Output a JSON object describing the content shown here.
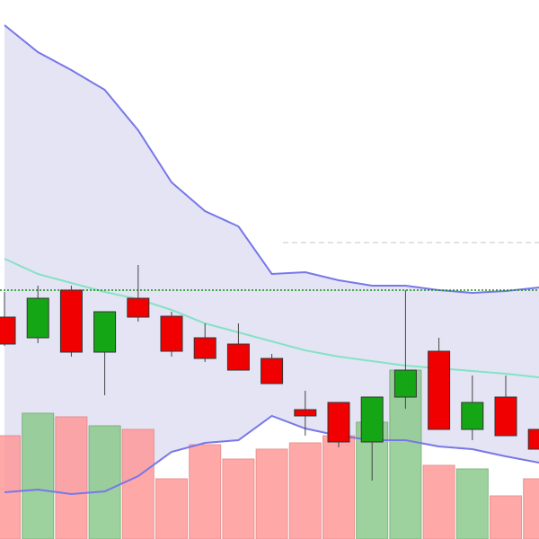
{
  "chart_data": {
    "type": "candlestick",
    "categories": [
      null,
      null,
      null,
      null,
      null,
      null,
      null,
      null,
      null,
      null,
      null,
      null,
      null,
      null,
      null,
      null,
      null
    ],
    "open": [
      247,
      224,
      277,
      208,
      268,
      248,
      224,
      217,
      201,
      144,
      152,
      108,
      158,
      209,
      122,
      158,
      122
    ],
    "high": [
      275,
      282,
      282,
      253,
      305,
      253,
      240,
      240,
      206,
      165,
      152,
      158,
      277,
      224,
      182,
      182,
      122
    ],
    "low": [
      215,
      218,
      203,
      160,
      242,
      203,
      197,
      188,
      173,
      115,
      102,
      65,
      145,
      122,
      110,
      115,
      100
    ],
    "close": [
      217,
      268,
      208,
      253,
      247,
      209,
      201,
      188,
      173,
      137,
      108,
      158,
      188,
      122,
      152,
      115,
      100
    ],
    "volume": [
      115,
      140,
      136,
      126,
      122,
      67,
      105,
      89,
      100,
      107,
      115,
      130,
      188,
      82,
      78,
      48,
      67
    ],
    "bands": {
      "upper": [
        572,
        542,
        522,
        500,
        455,
        397,
        365,
        348,
        295,
        297,
        288,
        282,
        282,
        277,
        274,
        276,
        280
      ],
      "middle": [
        312,
        295,
        285,
        275,
        267,
        255,
        240,
        230,
        220,
        210,
        203,
        198,
        193,
        190,
        187,
        184,
        180
      ],
      "lower": [
        52,
        55,
        50,
        53,
        70,
        97,
        107,
        110,
        137,
        123,
        115,
        110,
        110,
        103,
        100,
        92,
        85
      ]
    },
    "price_line": 277,
    "reference_line": 330,
    "ylim": [
      0,
      600
    ],
    "volume_lim": [
      0,
      600
    ],
    "up_color": "#14a614",
    "down_color": "#f00000",
    "volume_up_color": "#8cc98c",
    "volume_down_color": "#ff9a9a",
    "band_fill": "#e4e4f4",
    "band_color": "#7777e8",
    "middle_color": "#85e2c4",
    "price_line_color": "#109010",
    "reference_line_color": "#d8d8d8"
  }
}
